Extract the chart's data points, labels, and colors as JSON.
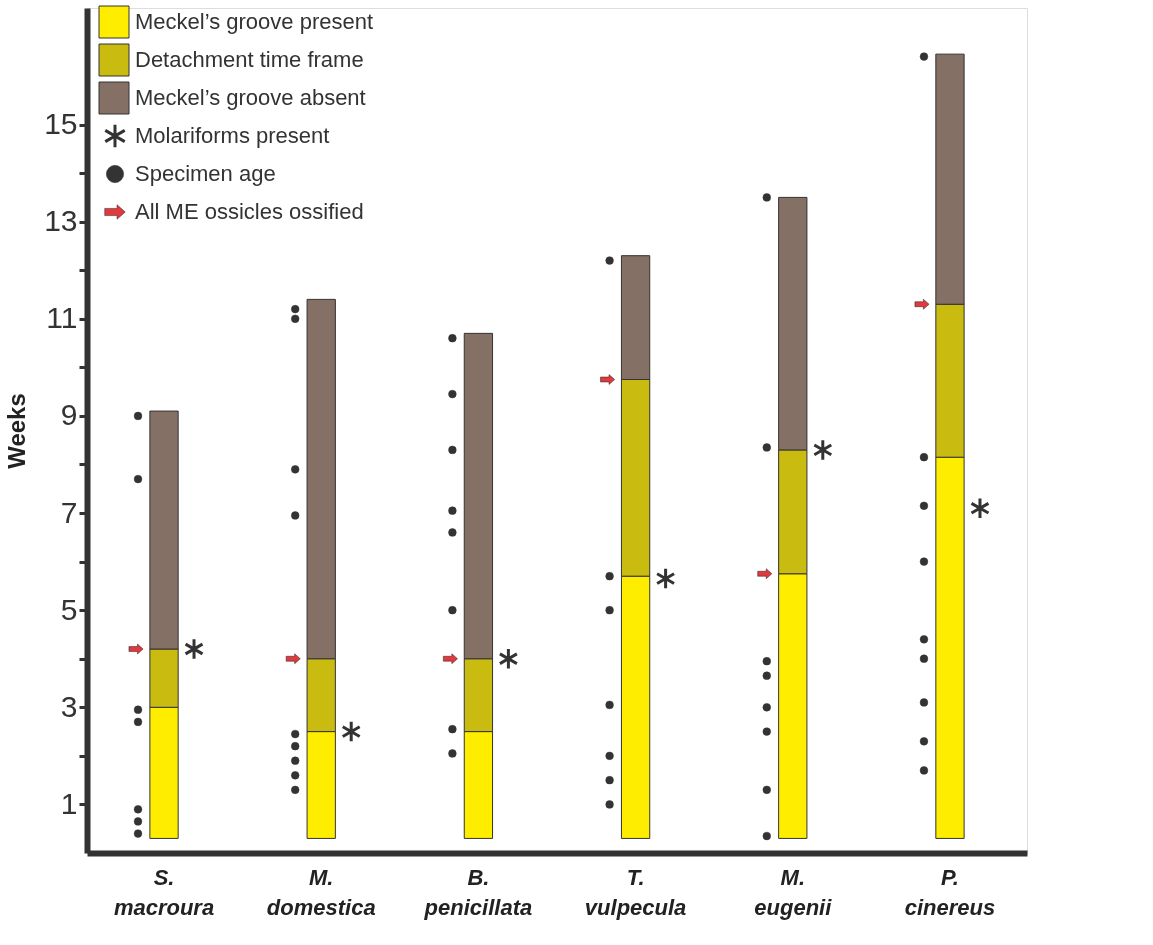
{
  "chart_data": {
    "type": "bar",
    "ylabel": "Weeks",
    "categories": [
      "S. macroura",
      "M. domestica",
      "B. penicillata",
      "T. vulpecula",
      "M. eugenii",
      "P. cinereus"
    ],
    "series": [
      {
        "name": "Meckel’s groove present",
        "color": "#ffed00",
        "base": [
          0.3,
          0.3,
          0.3,
          0.3,
          0.3,
          0.3
        ],
        "values": [
          2.7,
          2.2,
          2.2,
          5.4,
          5.45,
          7.85
        ]
      },
      {
        "name": "Detachment time frame",
        "color": "#c9bb10",
        "base": [
          3.0,
          2.5,
          2.5,
          5.7,
          5.75,
          8.15
        ],
        "values": [
          1.2,
          1.5,
          1.5,
          4.05,
          2.55,
          3.15
        ]
      },
      {
        "name": "Meckel’s groove absent",
        "color": "#857066",
        "base": [
          4.2,
          4.0,
          4.0,
          9.75,
          8.3,
          11.3
        ],
        "values": [
          4.9,
          7.4,
          6.7,
          2.55,
          5.2,
          5.15
        ]
      },
      {
        "name": "Molariforms present",
        "type": "scatter",
        "marker": "cross",
        "color": "#333333",
        "x": [
          "S. macroura",
          "M. domestica",
          "B. penicillata",
          "T. vulpecula",
          "M. eugenii",
          "P. cinereus"
        ],
        "values": [
          4.2,
          2.5,
          4.0,
          5.65,
          8.3,
          7.1
        ]
      },
      {
        "name": "Specimen age",
        "type": "scatter",
        "marker": "circle",
        "color": "#333333",
        "x": [
          "S. macroura",
          "S. macroura",
          "S. macroura",
          "S. macroura",
          "S. macroura",
          "S. macroura",
          "S. macroura",
          "M. domestica",
          "M. domestica",
          "M. domestica",
          "M. domestica",
          "M. domestica",
          "M. domestica",
          "M. domestica",
          "M. domestica",
          "M. domestica",
          "B. penicillata",
          "B. penicillata",
          "B. penicillata",
          "B. penicillata",
          "B. penicillata",
          "B. penicillata",
          "B. penicillata",
          "B. penicillata",
          "T. vulpecula",
          "T. vulpecula",
          "T. vulpecula",
          "T. vulpecula",
          "T. vulpecula",
          "T. vulpecula",
          "T. vulpecula",
          "M. eugenii",
          "M. eugenii",
          "M. eugenii",
          "M. eugenii",
          "M. eugenii",
          "M. eugenii",
          "M. eugenii",
          "M. eugenii",
          "P. cinereus",
          "P. cinereus",
          "P. cinereus",
          "P. cinereus",
          "P. cinereus",
          "P. cinereus",
          "P. cinereus",
          "P. cinereus",
          "P. cinereus"
        ],
        "values": [
          9.0,
          7.7,
          2.95,
          2.7,
          0.9,
          0.65,
          0.4,
          11.2,
          11.0,
          7.9,
          6.95,
          2.45,
          2.2,
          1.9,
          1.6,
          1.3,
          10.6,
          9.45,
          8.3,
          7.05,
          6.6,
          5.0,
          2.55,
          2.05,
          12.2,
          5.7,
          5.0,
          3.05,
          2.0,
          1.5,
          1.0,
          13.5,
          8.35,
          3.95,
          3.65,
          3.0,
          2.5,
          1.3,
          0.35,
          16.4,
          8.15,
          7.15,
          6.0,
          4.4,
          4.0,
          3.1,
          2.3,
          1.7
        ]
      },
      {
        "name": "All ME ossicles ossified",
        "type": "scatter",
        "marker": "triangle",
        "color": "#e0393e",
        "x": [
          "S. macroura",
          "M. domestica",
          "B. penicillata",
          "T. vulpecula",
          "M. eugenii",
          "P. cinereus"
        ],
        "values": [
          4.2,
          4.0,
          4.0,
          9.75,
          5.75,
          11.3
        ]
      }
    ],
    "ylim": [
      0,
      17.4
    ],
    "yticks": [
      1,
      {
        "value": 2,
        "label": null
      },
      3,
      {
        "value": 4,
        "label": null
      },
      5,
      {
        "value": 6,
        "label": null
      },
      7,
      {
        "value": 8,
        "label": null
      },
      9,
      {
        "value": 10,
        "label": null
      },
      11,
      {
        "value": 12,
        "label": null
      },
      13,
      {
        "value": 14,
        "label": null
      },
      15
    ],
    "grid": false,
    "legend": "top left"
  }
}
